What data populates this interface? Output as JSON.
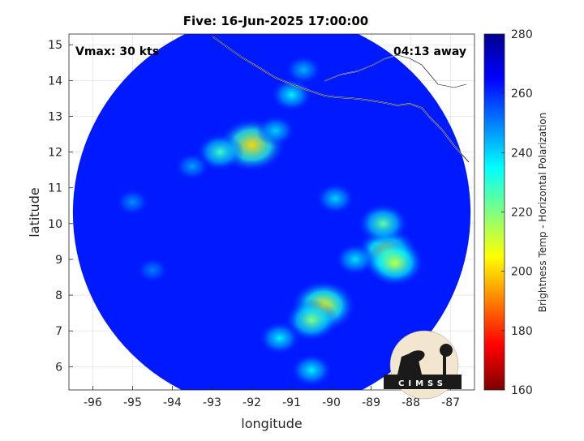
{
  "chart_data": {
    "type": "heatmap",
    "title": "Five: 16-Jun-2025 17:00:00",
    "annotations": {
      "vmax": "Vmax: 30 kts",
      "time_away": "04:13 away"
    },
    "xlabel": "longitude",
    "ylabel": "latitude",
    "xlim": [
      -96.6,
      -86.4
    ],
    "ylim": [
      5.35,
      15.3
    ],
    "xticks": [
      -96,
      -95,
      -94,
      -93,
      -92,
      -91,
      -90,
      -89,
      -88,
      -87
    ],
    "yticks": [
      6,
      7,
      8,
      9,
      10,
      11,
      12,
      13,
      14,
      15
    ],
    "grid": true,
    "colorbar": {
      "label": "Brightness Temp - Horizontal Polarization",
      "range": [
        160,
        280
      ],
      "ticks": [
        160,
        180,
        200,
        220,
        240,
        260,
        280
      ],
      "colors": [
        "#7f0000",
        "#ff0000",
        "#ff8000",
        "#ffff00",
        "#80ff80",
        "#00ffff",
        "#0080ff",
        "#0000ff",
        "#00008f"
      ]
    },
    "swath": {
      "center_lon": -91.5,
      "center_lat": 10.3,
      "radius_deg": 5.0,
      "background_tb": 262
    },
    "features": [
      {
        "lon": -92.0,
        "lat": 12.2,
        "tb": 200
      },
      {
        "lon": -92.8,
        "lat": 12.0,
        "tb": 228
      },
      {
        "lon": -91.4,
        "lat": 12.6,
        "tb": 240
      },
      {
        "lon": -91.0,
        "lat": 13.6,
        "tb": 236
      },
      {
        "lon": -90.7,
        "lat": 14.3,
        "tb": 244
      },
      {
        "lon": -88.6,
        "lat": 9.2,
        "tb": 208
      },
      {
        "lon": -88.4,
        "lat": 8.9,
        "tb": 212
      },
      {
        "lon": -88.7,
        "lat": 10.0,
        "tb": 224
      },
      {
        "lon": -89.4,
        "lat": 9.0,
        "tb": 238
      },
      {
        "lon": -90.2,
        "lat": 7.7,
        "tb": 204
      },
      {
        "lon": -90.5,
        "lat": 7.3,
        "tb": 220
      },
      {
        "lon": -91.3,
        "lat": 6.8,
        "tb": 236
      },
      {
        "lon": -90.5,
        "lat": 5.9,
        "tb": 236
      },
      {
        "lon": -89.9,
        "lat": 10.7,
        "tb": 240
      },
      {
        "lon": -93.5,
        "lat": 11.6,
        "tb": 246
      },
      {
        "lon": -95.0,
        "lat": 10.6,
        "tb": 248
      },
      {
        "lon": -94.5,
        "lat": 8.7,
        "tb": 250
      }
    ],
    "logo_text": "CIMSS"
  }
}
